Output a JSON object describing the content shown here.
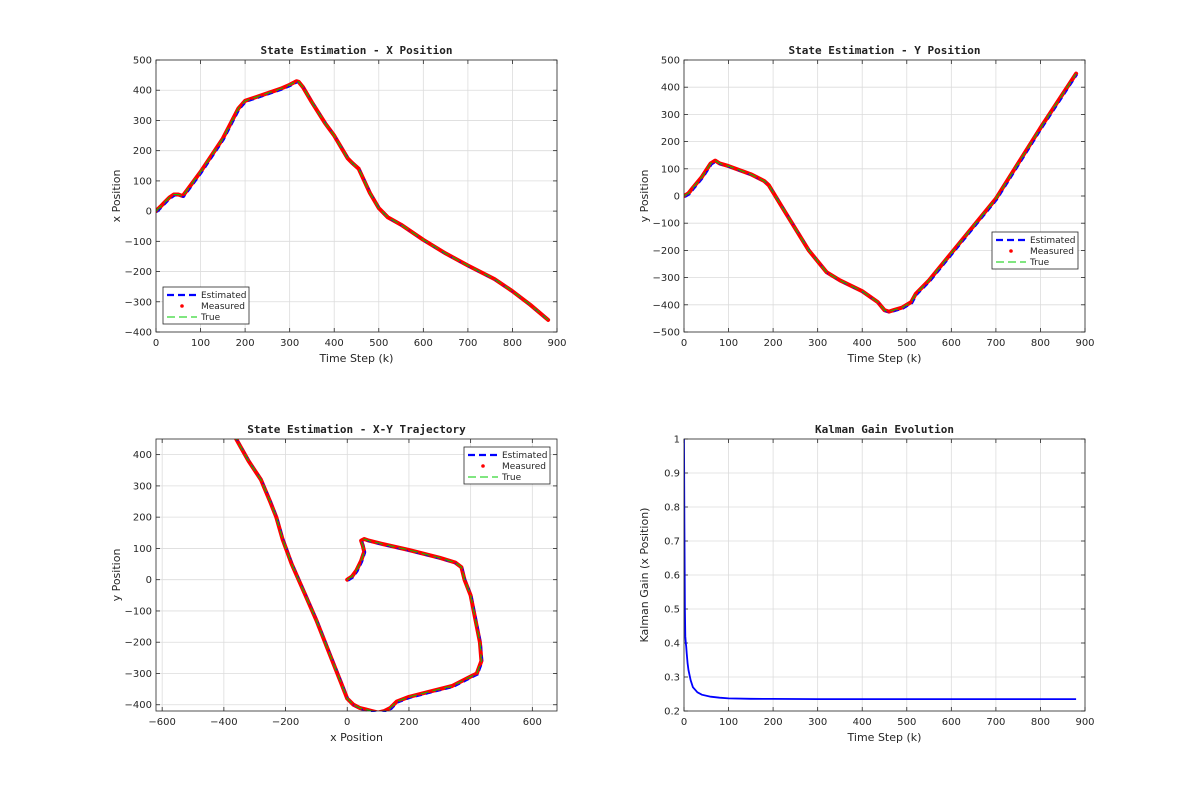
{
  "chart_data": [
    {
      "type": "line",
      "title": "State Estimation - X Position",
      "xlabel": "Time Step (k)",
      "ylabel": "x Position",
      "xlim": [
        0,
        900
      ],
      "ylim": [
        -400,
        500
      ],
      "xticks": [
        0,
        100,
        200,
        300,
        400,
        500,
        600,
        700,
        800,
        900
      ],
      "yticks": [
        -400,
        -300,
        -200,
        -100,
        0,
        100,
        200,
        300,
        400,
        500
      ],
      "grid": true,
      "legend_position": "bottom-left",
      "legend": [
        "Estimated",
        "Measured",
        "True"
      ],
      "x": [
        0,
        10,
        20,
        30,
        40,
        50,
        60,
        70,
        100,
        150,
        185,
        200,
        240,
        280,
        300,
        315,
        320,
        330,
        350,
        380,
        400,
        430,
        440,
        455,
        480,
        500,
        520,
        550,
        600,
        650,
        700,
        760,
        800,
        840,
        880
      ],
      "y": [
        0,
        15,
        30,
        45,
        55,
        55,
        50,
        70,
        130,
        240,
        340,
        365,
        385,
        405,
        418,
        430,
        428,
        410,
        360,
        290,
        250,
        175,
        160,
        140,
        60,
        10,
        -20,
        -45,
        -95,
        -140,
        -180,
        -225,
        -265,
        -310,
        -360
      ]
    },
    {
      "type": "line",
      "title": "State Estimation - Y Position",
      "xlabel": "Time Step (k)",
      "ylabel": "y Position",
      "xlim": [
        0,
        900
      ],
      "ylim": [
        -500,
        500
      ],
      "xticks": [
        0,
        100,
        200,
        300,
        400,
        500,
        600,
        700,
        800,
        900
      ],
      "yticks": [
        -500,
        -400,
        -300,
        -200,
        -100,
        0,
        100,
        200,
        300,
        400,
        500
      ],
      "grid": true,
      "legend_position": "right",
      "legend": [
        "Estimated",
        "Measured",
        "True"
      ],
      "x": [
        0,
        10,
        20,
        40,
        60,
        70,
        80,
        100,
        150,
        180,
        190,
        220,
        280,
        320,
        350,
        400,
        435,
        450,
        460,
        470,
        490,
        510,
        520,
        550,
        600,
        700,
        800,
        880
      ],
      "y": [
        0,
        10,
        30,
        70,
        120,
        130,
        120,
        110,
        80,
        55,
        40,
        -40,
        -200,
        -280,
        -310,
        -350,
        -390,
        -420,
        -425,
        -420,
        -410,
        -390,
        -360,
        -310,
        -210,
        -10,
        250,
        450
      ]
    },
    {
      "type": "line",
      "title": "State Estimation - X-Y Trajectory",
      "xlabel": "x Position",
      "ylabel": "y Position",
      "xlim": [
        -620,
        680
      ],
      "ylim": [
        -420,
        450
      ],
      "xticks": [
        -600,
        -400,
        -200,
        0,
        200,
        400,
        600
      ],
      "yticks": [
        -400,
        -300,
        -200,
        -100,
        0,
        100,
        200,
        300,
        400
      ],
      "grid": true,
      "legend_position": "top-right",
      "legend": [
        "Estimated",
        "Measured",
        "True"
      ],
      "x": [
        0,
        15,
        30,
        45,
        55,
        50,
        45,
        55,
        70,
        110,
        200,
        300,
        350,
        370,
        380,
        400,
        410,
        420,
        430,
        435,
        420,
        400,
        340,
        260,
        200,
        160,
        140,
        120,
        100,
        80,
        60,
        40,
        20,
        0,
        -20,
        -60,
        -100,
        -140,
        -180,
        -210,
        -230,
        -250,
        -280,
        -320,
        -360
      ],
      "y": [
        0,
        10,
        30,
        60,
        90,
        110,
        125,
        130,
        125,
        115,
        95,
        70,
        55,
        40,
        0,
        -50,
        -100,
        -150,
        -200,
        -260,
        -300,
        -310,
        -340,
        -360,
        -375,
        -390,
        -410,
        -420,
        -425,
        -420,
        -415,
        -410,
        -400,
        -380,
        -330,
        -230,
        -130,
        -40,
        50,
        130,
        200,
        250,
        320,
        380,
        450
      ]
    },
    {
      "type": "line",
      "title": "Kalman Gain Evolution",
      "xlabel": "Time Step (k)",
      "ylabel": "Kalman Gain (x Position)",
      "xlim": [
        0,
        900
      ],
      "ylim": [
        0.2,
        1
      ],
      "xticks": [
        0,
        100,
        200,
        300,
        400,
        500,
        600,
        700,
        800,
        900
      ],
      "yticks": [
        0.2,
        0.3,
        0.4,
        0.5,
        0.6,
        0.7,
        0.8,
        0.9,
        1
      ],
      "grid": true,
      "x": [
        0,
        1,
        2,
        3,
        4,
        5,
        6,
        8,
        10,
        15,
        20,
        30,
        40,
        60,
        80,
        100,
        150,
        200,
        300,
        500,
        700,
        880
      ],
      "y": [
        1,
        0.75,
        0.5,
        0.42,
        0.4,
        0.39,
        0.37,
        0.34,
        0.32,
        0.29,
        0.27,
        0.255,
        0.248,
        0.242,
        0.239,
        0.237,
        0.236,
        0.2355,
        0.235,
        0.235,
        0.235,
        0.235
      ]
    }
  ],
  "colors": {
    "estimated": "#0000ff",
    "measured": "#ff0000",
    "true": "#00cc00",
    "gain": "#0000ff",
    "grid": "#dcdcdc",
    "axis": "#262626"
  }
}
